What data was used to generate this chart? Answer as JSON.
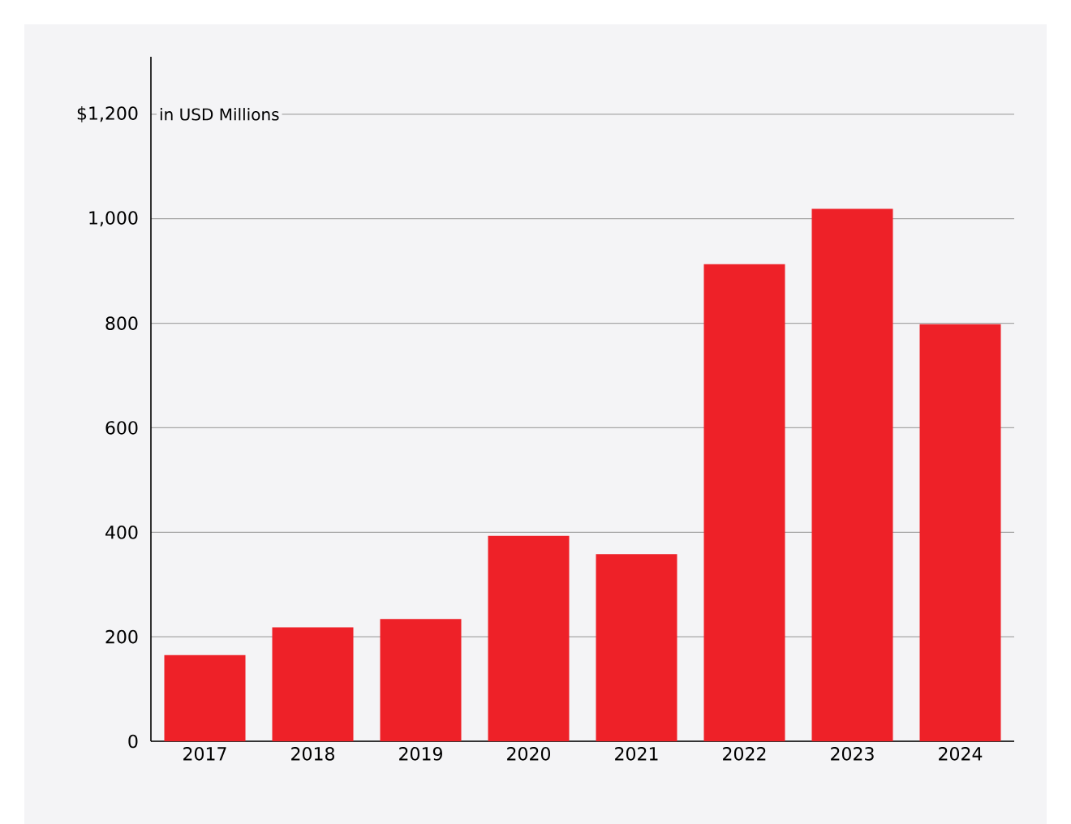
{
  "chart_data": {
    "type": "bar",
    "categories": [
      "2017",
      "2018",
      "2019",
      "2020",
      "2021",
      "2022",
      "2023",
      "2024"
    ],
    "values": [
      165,
      218,
      234,
      393,
      358,
      913,
      1019,
      798
    ],
    "color": "#ee2128",
    "ylim": [
      0,
      1310
    ],
    "yticks": [
      0,
      200,
      400,
      600,
      800,
      {
        "value": 1000,
        "label": "1,000"
      },
      {
        "value": 1200,
        "label": "$1,200"
      }
    ],
    "grid": "y",
    "annotations": [
      "in USD Millions"
    ]
  }
}
